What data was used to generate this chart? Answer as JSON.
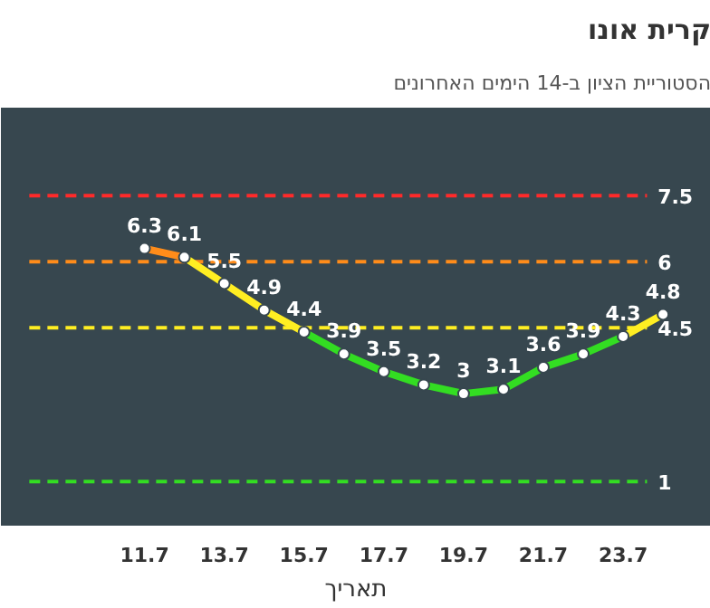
{
  "chart_data": {
    "type": "line",
    "title": "קרית אונו",
    "subtitle": "הסטוריית הציון ב-14 הימים האחרונים",
    "xlabel": "תאריך",
    "categories": [
      "11.7",
      null,
      "13.7",
      null,
      "15.7",
      null,
      "17.7",
      null,
      "19.7",
      null,
      "21.7",
      null,
      "23.7",
      null
    ],
    "series": [
      {
        "color": "#ff8c1a",
        "values": [
          6.3,
          6.1,
          null,
          null,
          null,
          null,
          null,
          null,
          null,
          null,
          null,
          null,
          null,
          null
        ]
      },
      {
        "color": "#ffee22",
        "values": [
          null,
          6.1,
          5.5,
          4.9,
          4.4,
          null,
          null,
          null,
          null,
          null,
          null,
          null,
          4.3,
          4.8
        ],
        "value_labels": [
          null,
          null,
          "5.5",
          "4.9",
          null,
          null,
          null,
          null,
          null,
          null,
          null,
          null,
          null,
          "4.8"
        ]
      },
      {
        "color": "#33dd22",
        "values": [
          null,
          null,
          null,
          null,
          4.4,
          3.9,
          3.5,
          3.2,
          3,
          3.1,
          3.6,
          3.9,
          4.3,
          null
        ]
      }
    ],
    "ylim": [
      0,
      9.5
    ],
    "tick_labels": "x",
    "data_labels": true,
    "marker": "circle",
    "grid": false,
    "ref_lines": [
      {
        "axis": "y",
        "value": 7.5,
        "label": "7.5",
        "color": "#ff2a2a",
        "line_style": "dashed"
      },
      {
        "axis": "y",
        "value": 6,
        "label": "6",
        "color": "#ff8c1a",
        "line_style": "dashed"
      },
      {
        "axis": "y",
        "value": 4.5,
        "label": "4.5",
        "color": "#ffee22",
        "line_style": "dashed"
      },
      {
        "axis": "y",
        "value": 1,
        "label": "1",
        "color": "#33dd22",
        "line_style": "dashed"
      }
    ]
  }
}
